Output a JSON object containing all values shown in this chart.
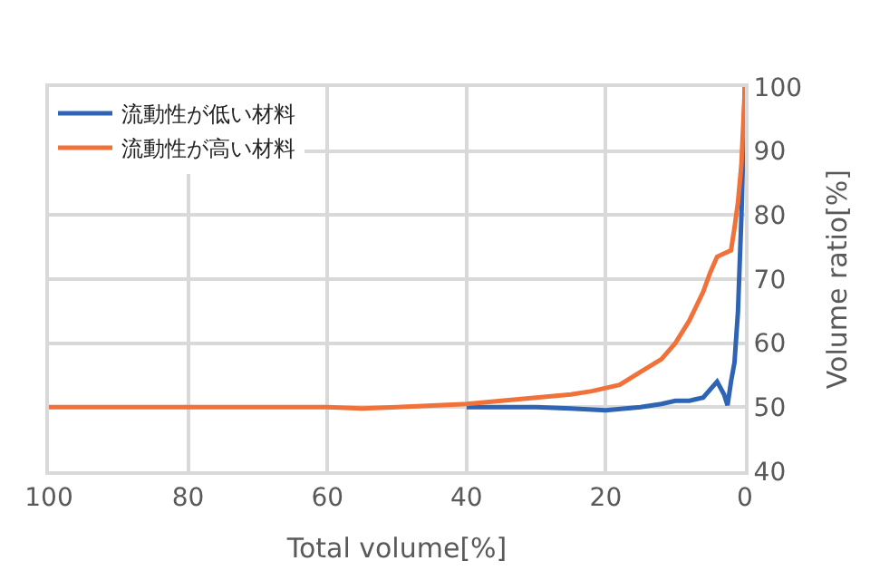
{
  "chart_data": {
    "type": "line",
    "xlabel": "Total volume[%]",
    "ylabel": "Volume ratio[%]",
    "xlim": [
      100,
      0
    ],
    "xticks": [
      100,
      80,
      60,
      40,
      20,
      0
    ],
    "ylim": [
      40,
      100
    ],
    "yticks": [
      40,
      50,
      60,
      70,
      80,
      90,
      100
    ],
    "grid": true,
    "legend": "top left",
    "marker": "none",
    "line_style": "solid",
    "series": [
      {
        "name": "流動性が低い材料",
        "color": "#2f64b5",
        "x": [
          40,
          30,
          25,
          20,
          15,
          12,
          10,
          8,
          6,
          4,
          3,
          2.5,
          2,
          1.5,
          1,
          0.5,
          0
        ],
        "values": [
          50,
          50,
          49.8,
          49.5,
          50,
          50.5,
          51,
          51,
          51.5,
          54,
          52,
          50.3,
          54,
          57,
          65,
          80,
          100
        ]
      },
      {
        "name": "流動性が高い材料",
        "color": "#f0723a",
        "x": [
          100,
          80,
          60,
          55,
          50,
          40,
          30,
          25,
          22,
          18,
          15,
          12,
          10,
          8,
          6,
          5,
          4,
          3,
          2,
          1.5,
          1,
          0.5,
          0
        ],
        "values": [
          50,
          50,
          50,
          49.8,
          50,
          50.5,
          51.5,
          52,
          52.5,
          53.5,
          55.5,
          57.5,
          60,
          63.5,
          68,
          71,
          73.5,
          74,
          74.5,
          78,
          82,
          88,
          100
        ]
      }
    ]
  }
}
